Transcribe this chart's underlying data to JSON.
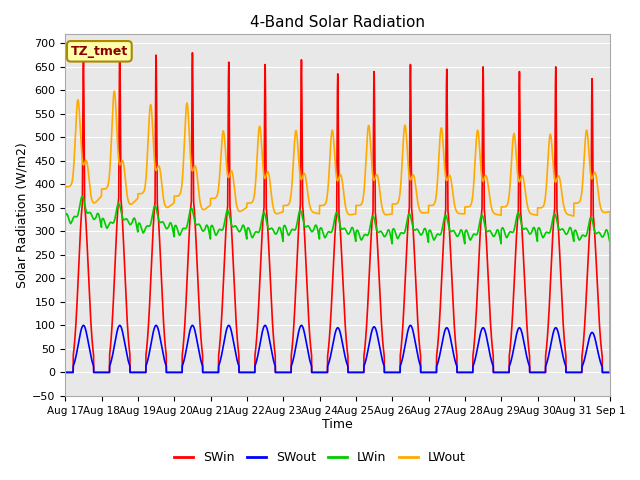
{
  "title": "4-Band Solar Radiation",
  "xlabel": "Time",
  "ylabel": "Solar Radiation (W/m2)",
  "annotation": "TZ_tmet",
  "annotation_bg": "#ffffaa",
  "annotation_border": "#aa8800",
  "annotation_text_color": "#880000",
  "ylim": [
    -50,
    720
  ],
  "yticks": [
    -50,
    0,
    50,
    100,
    150,
    200,
    250,
    300,
    350,
    400,
    450,
    500,
    550,
    600,
    650,
    700
  ],
  "plot_bg": "#e8e8e8",
  "fig_bg": "#ffffff",
  "grid_color": "#ffffff",
  "series": {
    "SWin": {
      "color": "#ff0000",
      "lw": 1.2
    },
    "SWout": {
      "color": "#0000ff",
      "lw": 1.2
    },
    "LWin": {
      "color": "#00cc00",
      "lw": 1.2
    },
    "LWout": {
      "color": "#ffaa00",
      "lw": 1.2
    }
  },
  "n_days": 15,
  "tick_labels": [
    "Aug 17",
    "Aug 18",
    "Aug 19",
    "Aug 20",
    "Aug 21",
    "Aug 22",
    "Aug 23",
    "Aug 24",
    "Aug 25",
    "Aug 26",
    "Aug 27",
    "Aug 28",
    "Aug 29",
    "Aug 30",
    "Aug 31",
    "Sep 1"
  ],
  "legend_labels": [
    "SWin",
    "SWout",
    "LWin",
    "LWout"
  ]
}
